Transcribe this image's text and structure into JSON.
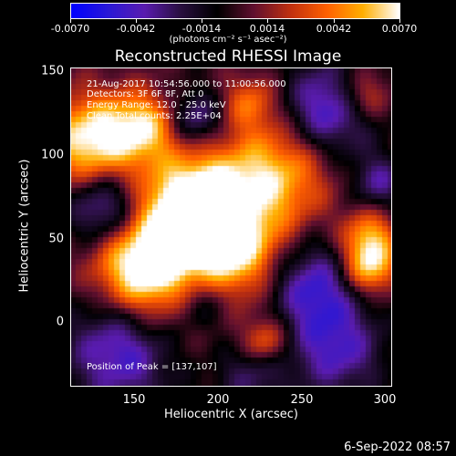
{
  "colorbar": {
    "ticks": [
      "-0.0070",
      "-0.0042",
      "-0.0014",
      "0.0014",
      "0.0042",
      "0.0070"
    ],
    "units": "(photons cm⁻² s⁻¹ asec⁻²)"
  },
  "plot": {
    "title": "Reconstructed RHESSI Image",
    "annotations": {
      "time": "21-Aug-2017 10:54:56.000 to 11:00:56.000",
      "detectors": "Detectors: 3F 6F 8F, Att 0",
      "energy": "Energy Range: 12.0 - 25.0 keV",
      "clean": "Clean     Total counts: 2.25E+04",
      "peak": "Position of Peak = [137,107]"
    },
    "xlabel": "Heliocentric X (arcsec)",
    "ylabel": "Heliocentric Y (arcsec)",
    "xticks": [
      "150",
      "200",
      "250",
      "300"
    ],
    "yticks": [
      "150",
      "100",
      "50",
      "0"
    ]
  },
  "footer": {
    "date": "6-Sep-2022 08:57"
  },
  "colors": {
    "colormap": [
      "#0000ff",
      "#2a18d8",
      "#5a1cb0",
      "#2a1040",
      "#000000",
      "#601030",
      "#c03010",
      "#ff6000",
      "#ffb000",
      "#ffffff"
    ]
  }
}
